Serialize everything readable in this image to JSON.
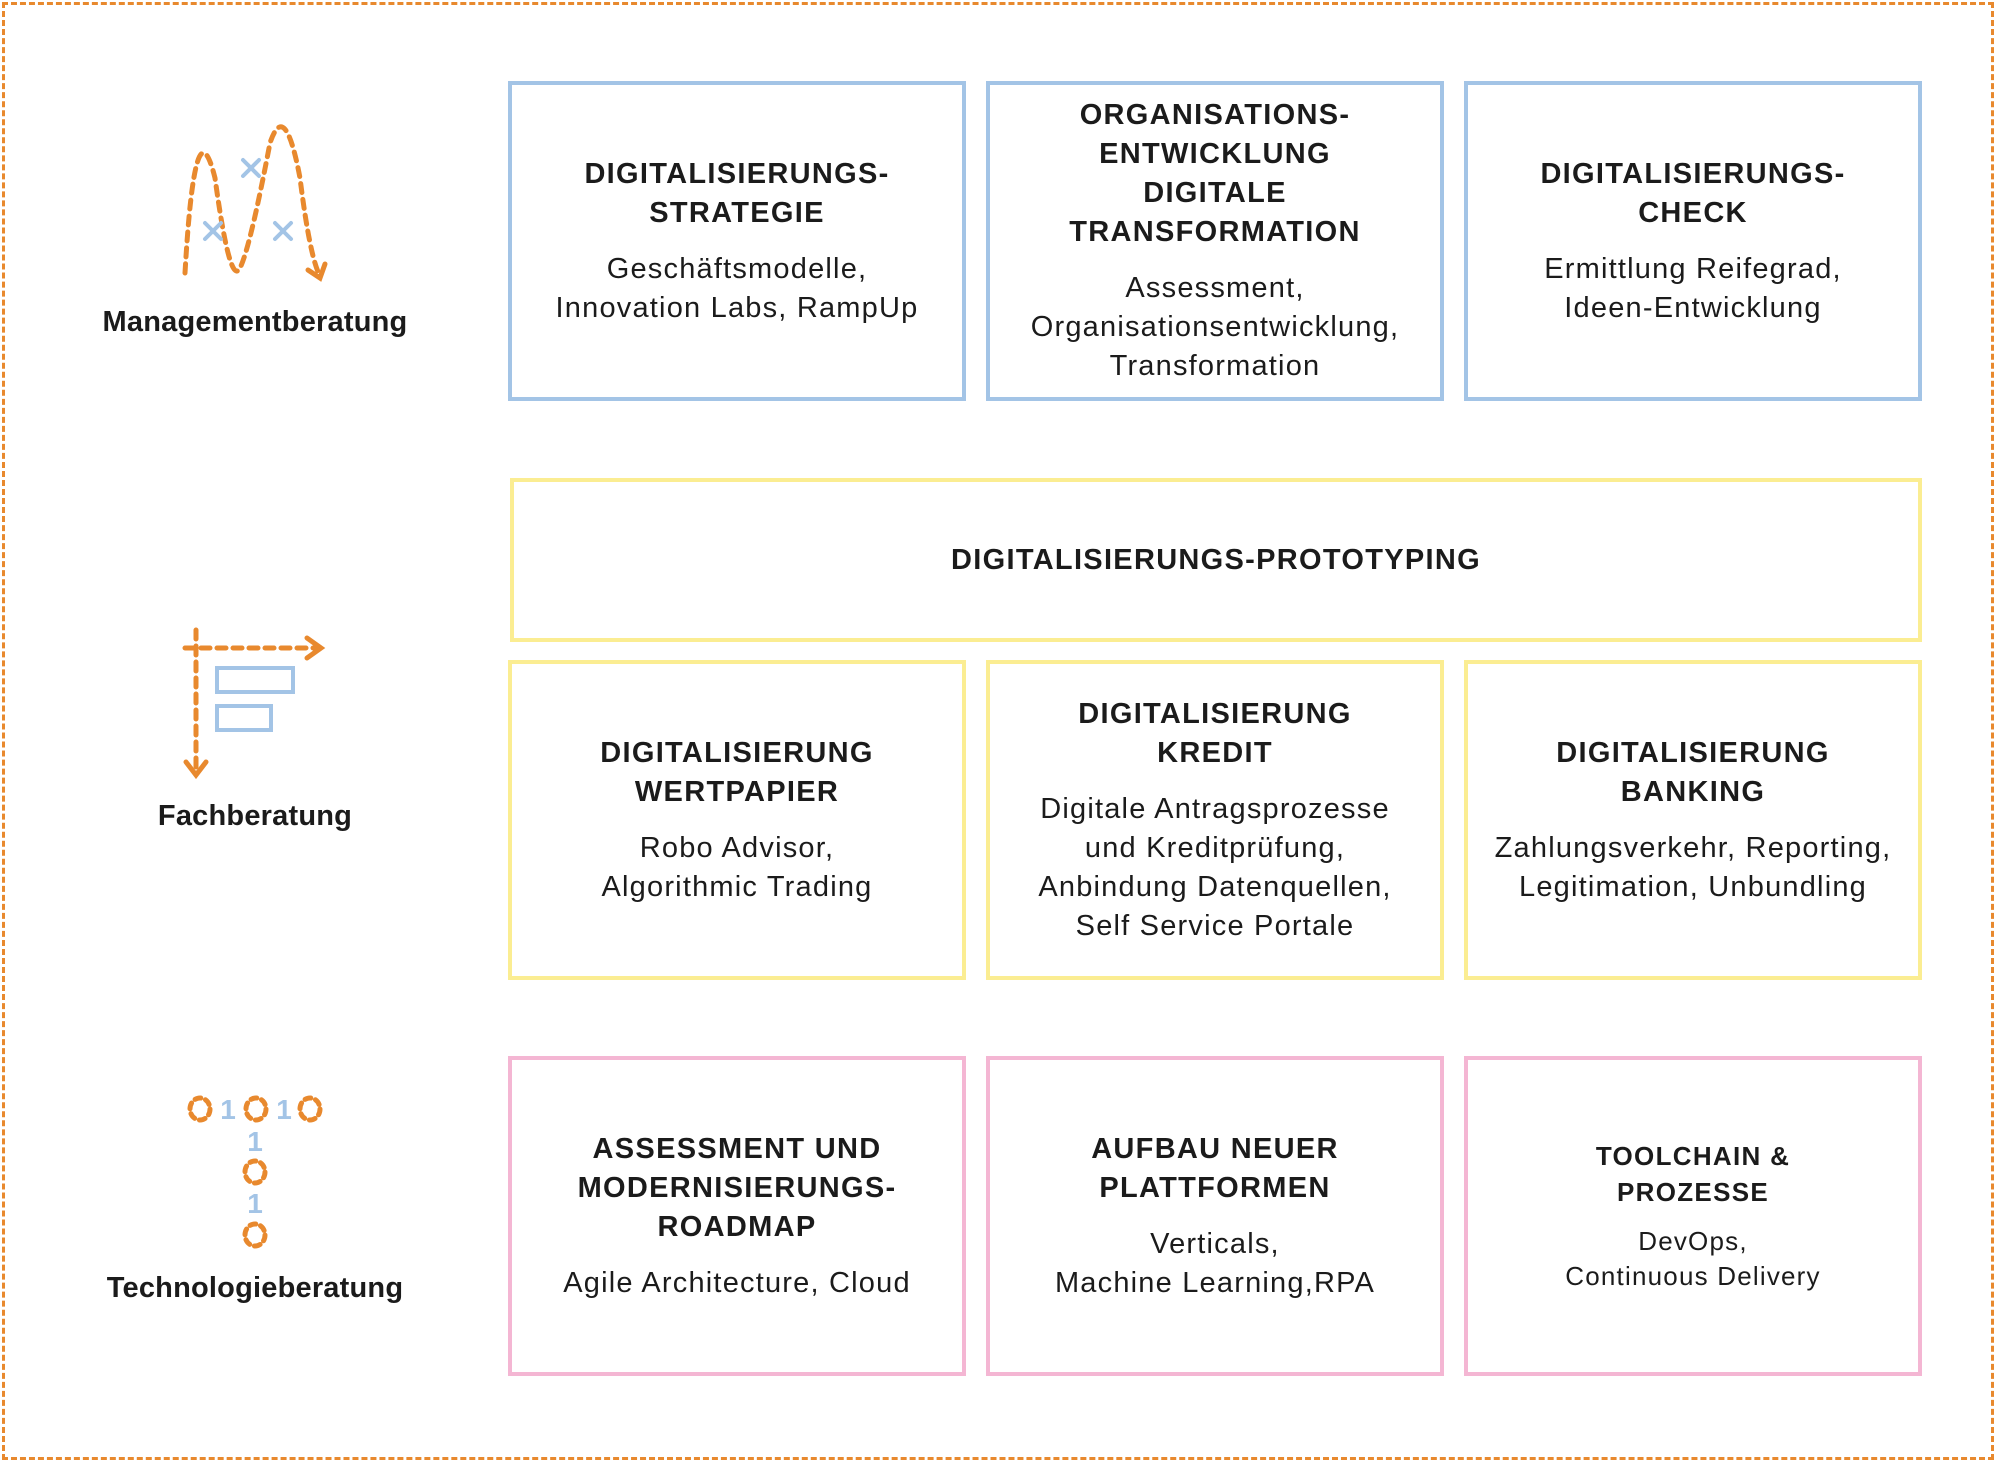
{
  "rows": [
    {
      "label": "Managementberatung",
      "icon": "management-arch-icon"
    },
    {
      "label": "Fachberatung",
      "icon": "expertise-chart-icon"
    },
    {
      "label": "Technologieberatung",
      "icon": "binary-tree-icon"
    }
  ],
  "prototyping": {
    "title": "DIGITALISIERUNGS-PROTOTYPING"
  },
  "cards": [
    {
      "title": "DIGITALISIERUNGS-\nSTRATEGIE",
      "text": "Geschäftsmodelle,\nInnovation Labs, RampUp"
    },
    {
      "title": "ORGANISATIONS-\nENTWICKLUNG\nDIGITALE TRANSFORMATION",
      "text": "Assessment,\nOrganisationsentwicklung,\nTransformation"
    },
    {
      "title": "DIGITALISIERUNGS-\nCHECK",
      "text": "Ermittlung Reifegrad,\nIdeen-Entwicklung"
    },
    {
      "title": "DIGITALISIERUNG\nWERTPAPIER",
      "text": "Robo Advisor,\nAlgorithmic Trading"
    },
    {
      "title": "DIGITALISIERUNG\nKREDIT",
      "text": "Digitale Antragsprozesse\nund Kreditprüfung,\nAnbindung Datenquellen,\nSelf Service Portale"
    },
    {
      "title": "DIGITALISIERUNG\nBANKING",
      "text": "Zahlungsverkehr, Reporting,\nLegitimation, Unbundling"
    },
    {
      "title": "ASSESSMENT UND\nMODERNISIERUNGS-\nROADMAP",
      "text": "Agile Architecture, Cloud"
    },
    {
      "title": "AUFBAU NEUER\nPLATTFORMEN",
      "text": "Verticals,\nMachine Learning,RPA"
    },
    {
      "title": "TOOLCHAIN &\nPROZESSE",
      "text": "DevOps,\nContinuous Delivery"
    }
  ],
  "binary_glyphs": [
    "1",
    "1",
    "1",
    "1"
  ],
  "colors": {
    "frame": "#e8892e",
    "management": "#a3c4e6",
    "fach": "#fbed92",
    "technologie": "#f4b6d3",
    "icon_orange": "#e8892e",
    "icon_blue": "#a3c4e6"
  }
}
